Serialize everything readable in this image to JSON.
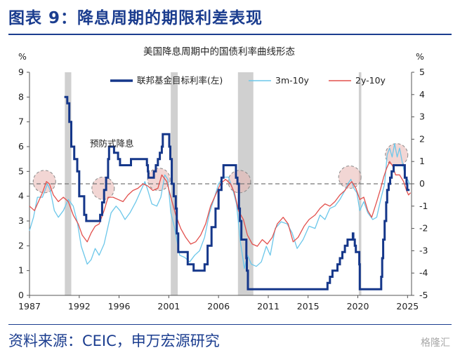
{
  "header": {
    "title": "图表 9：降息周期的期限利差表现"
  },
  "footer": {
    "source": "资料来源：CEIC，申万宏源研究",
    "watermark": "格隆汇"
  },
  "chart_data": {
    "type": "line",
    "title": "美国降息周期中的国债利率曲线形态",
    "y_left_unit": "%",
    "y_right_unit": "%",
    "y_left": {
      "min": 0,
      "max": 9,
      "ticks": [
        0,
        1,
        2,
        3,
        4,
        5,
        6,
        7,
        8,
        9
      ]
    },
    "y_right": {
      "min": -5,
      "max": 5,
      "ticks": [
        -5,
        -4,
        -3,
        -2,
        -1,
        0,
        1,
        2,
        3,
        4,
        5
      ]
    },
    "x": {
      "min": 1987,
      "max": 2025.4,
      "ticks": [
        "1987",
        "1992",
        "1996",
        "2001",
        "2006",
        "2011",
        "2015",
        "2020",
        "2025"
      ]
    },
    "recessions": [
      [
        1990.55,
        1991.2
      ],
      [
        2001.2,
        2001.9
      ],
      [
        2007.95,
        2009.5
      ],
      [
        2020.1,
        2020.35
      ]
    ],
    "annotation": "预防式降息",
    "legend": {
      "position": "top",
      "entries": [
        "联邦基金目标利率(左)",
        "3m-10y",
        "2y-10y"
      ]
    },
    "colors": {
      "fed": "#15378a",
      "m3y10": "#6cc7ea",
      "y2y10": "#e2504d",
      "recession": "#d0d0d0",
      "circle": "#e7b4b0"
    },
    "series": [
      {
        "name": "联邦基金目标利率(左)",
        "axis": "left",
        "points": [
          [
            1990.5,
            8.0
          ],
          [
            1990.8,
            7.75
          ],
          [
            1991.0,
            7.0
          ],
          [
            1991.2,
            6.0
          ],
          [
            1991.5,
            5.5
          ],
          [
            1991.8,
            5.0
          ],
          [
            1992.0,
            4.0
          ],
          [
            1992.5,
            3.25
          ],
          [
            1992.7,
            3.0
          ],
          [
            1994.0,
            3.0
          ],
          [
            1994.1,
            3.25
          ],
          [
            1994.3,
            3.75
          ],
          [
            1994.5,
            4.25
          ],
          [
            1994.7,
            4.75
          ],
          [
            1994.9,
            5.5
          ],
          [
            1995.0,
            6.0
          ],
          [
            1995.5,
            5.75
          ],
          [
            1995.9,
            5.5
          ],
          [
            1996.1,
            5.25
          ],
          [
            1997.2,
            5.5
          ],
          [
            1998.7,
            5.5
          ],
          [
            1998.8,
            5.25
          ],
          [
            1998.9,
            5.0
          ],
          [
            1998.95,
            4.75
          ],
          [
            1999.5,
            5.0
          ],
          [
            1999.7,
            5.25
          ],
          [
            1999.9,
            5.5
          ],
          [
            2000.1,
            5.75
          ],
          [
            2000.3,
            6.0
          ],
          [
            2000.4,
            6.5
          ],
          [
            2000.95,
            6.5
          ],
          [
            2001.05,
            6.0
          ],
          [
            2001.15,
            5.5
          ],
          [
            2001.3,
            4.5
          ],
          [
            2001.5,
            4.0
          ],
          [
            2001.7,
            3.5
          ],
          [
            2001.8,
            2.5
          ],
          [
            2001.95,
            1.75
          ],
          [
            2002.9,
            1.25
          ],
          [
            2003.5,
            1.0
          ],
          [
            2004.45,
            1.0
          ],
          [
            2004.6,
            1.25
          ],
          [
            2004.9,
            2.0
          ],
          [
            2005.3,
            2.75
          ],
          [
            2005.7,
            3.5
          ],
          [
            2006.0,
            4.25
          ],
          [
            2006.3,
            4.75
          ],
          [
            2006.5,
            5.25
          ],
          [
            2007.7,
            5.25
          ],
          [
            2007.75,
            4.75
          ],
          [
            2007.9,
            4.5
          ],
          [
            2008.05,
            3.5
          ],
          [
            2008.15,
            3.0
          ],
          [
            2008.3,
            2.25
          ],
          [
            2008.8,
            1.5
          ],
          [
            2008.85,
            1.0
          ],
          [
            2008.95,
            0.25
          ],
          [
            2015.95,
            0.25
          ],
          [
            2016.95,
            0.5
          ],
          [
            2017.2,
            0.75
          ],
          [
            2017.45,
            1.0
          ],
          [
            2017.95,
            1.25
          ],
          [
            2018.2,
            1.5
          ],
          [
            2018.45,
            1.75
          ],
          [
            2018.7,
            2.0
          ],
          [
            2018.97,
            2.25
          ],
          [
            2019.5,
            2.5
          ],
          [
            2019.55,
            2.25
          ],
          [
            2019.7,
            2.0
          ],
          [
            2019.8,
            1.75
          ],
          [
            2020.15,
            1.25
          ],
          [
            2020.2,
            0.25
          ],
          [
            2022.2,
            0.25
          ],
          [
            2022.35,
            0.75
          ],
          [
            2022.45,
            1.5
          ],
          [
            2022.55,
            2.25
          ],
          [
            2022.7,
            3.0
          ],
          [
            2022.85,
            3.75
          ],
          [
            2022.95,
            4.25
          ],
          [
            2023.1,
            4.5
          ],
          [
            2023.25,
            4.75
          ],
          [
            2023.4,
            5.0
          ],
          [
            2023.6,
            5.25
          ],
          [
            2024.7,
            5.25
          ],
          [
            2024.72,
            4.75
          ],
          [
            2024.9,
            4.5
          ],
          [
            2024.97,
            4.25
          ],
          [
            2025.2,
            4.25
          ]
        ]
      },
      {
        "name": "3m-10y",
        "axis": "right",
        "points": [
          [
            1987.0,
            -2.1
          ],
          [
            1987.4,
            -1.5
          ],
          [
            1987.8,
            -0.6
          ],
          [
            1988.3,
            -0.6
          ],
          [
            1988.8,
            0.0
          ],
          [
            1989.1,
            -0.3
          ],
          [
            1989.5,
            -1.2
          ],
          [
            1989.9,
            -1.5
          ],
          [
            1990.4,
            -1.2
          ],
          [
            1990.9,
            -0.7
          ],
          [
            1991.4,
            -1.0
          ],
          [
            1991.8,
            -1.7
          ],
          [
            1992.2,
            -2.8
          ],
          [
            1992.8,
            -3.6
          ],
          [
            1993.2,
            -3.4
          ],
          [
            1993.6,
            -2.9
          ],
          [
            1994.0,
            -3.2
          ],
          [
            1994.5,
            -2.7
          ],
          [
            1994.8,
            -2.1
          ],
          [
            1995.2,
            -1.3
          ],
          [
            1995.7,
            -1.0
          ],
          [
            1996.1,
            -1.2
          ],
          [
            1996.6,
            -1.6
          ],
          [
            1997.1,
            -1.3
          ],
          [
            1997.7,
            -0.8
          ],
          [
            1998.1,
            -0.4
          ],
          [
            1998.6,
            0.1
          ],
          [
            1998.9,
            -0.3
          ],
          [
            1999.3,
            -0.9
          ],
          [
            1999.8,
            -1.0
          ],
          [
            2000.2,
            -0.6
          ],
          [
            2000.6,
            0.4
          ],
          [
            2000.9,
            0.2
          ],
          [
            2001.2,
            -1.3
          ],
          [
            2001.6,
            -2.0
          ],
          [
            2002.1,
            -3.2
          ],
          [
            2002.6,
            -3.3
          ],
          [
            2003.1,
            -3.5
          ],
          [
            2003.6,
            -3.2
          ],
          [
            2004.1,
            -3.0
          ],
          [
            2004.6,
            -2.4
          ],
          [
            2005.1,
            -1.3
          ],
          [
            2005.6,
            -0.6
          ],
          [
            2006.0,
            0.0
          ],
          [
            2006.5,
            0.3
          ],
          [
            2007.0,
            0.3
          ],
          [
            2007.4,
            -0.2
          ],
          [
            2007.8,
            -0.9
          ],
          [
            2008.2,
            -2.6
          ],
          [
            2008.6,
            -3.8
          ],
          [
            2008.9,
            -3.2
          ],
          [
            2009.3,
            -3.6
          ],
          [
            2009.8,
            -3.7
          ],
          [
            2010.3,
            -3.5
          ],
          [
            2010.8,
            -2.8
          ],
          [
            2011.2,
            -3.2
          ],
          [
            2011.7,
            -2.0
          ],
          [
            2012.3,
            -1.7
          ],
          [
            2012.9,
            -1.8
          ],
          [
            2013.4,
            -2.2
          ],
          [
            2013.9,
            -2.9
          ],
          [
            2014.5,
            -2.5
          ],
          [
            2015.1,
            -1.9
          ],
          [
            2015.7,
            -2.0
          ],
          [
            2016.2,
            -1.4
          ],
          [
            2016.7,
            -1.6
          ],
          [
            2017.2,
            -1.1
          ],
          [
            2017.7,
            -1.0
          ],
          [
            2018.2,
            -0.7
          ],
          [
            2018.7,
            -0.3
          ],
          [
            2019.0,
            0.0
          ],
          [
            2019.3,
            0.2
          ],
          [
            2019.6,
            -0.2
          ],
          [
            2019.9,
            -0.4
          ],
          [
            2020.2,
            -1.2
          ],
          [
            2020.6,
            -0.8
          ],
          [
            2021.0,
            -1.3
          ],
          [
            2021.5,
            -1.6
          ],
          [
            2021.9,
            -1.5
          ],
          [
            2022.3,
            -0.7
          ],
          [
            2022.7,
            0.0
          ],
          [
            2022.95,
            1.3
          ],
          [
            2023.2,
            1.6
          ],
          [
            2023.45,
            1.2
          ],
          [
            2023.7,
            1.8
          ],
          [
            2023.95,
            1.2
          ],
          [
            2024.2,
            1.6
          ],
          [
            2024.5,
            0.9
          ],
          [
            2024.8,
            0.3
          ],
          [
            2025.0,
            0.2
          ],
          [
            2025.2,
            0.0
          ]
        ]
      },
      {
        "name": "2y-10y",
        "axis": "right",
        "points": [
          [
            1987.0,
            -1.0
          ],
          [
            1987.5,
            -1.2
          ],
          [
            1987.9,
            -0.8
          ],
          [
            1988.3,
            -0.4
          ],
          [
            1988.7,
            0.1
          ],
          [
            1989.0,
            0.0
          ],
          [
            1989.4,
            -0.5
          ],
          [
            1989.9,
            -0.8
          ],
          [
            1990.4,
            -0.6
          ],
          [
            1990.9,
            -0.8
          ],
          [
            1991.4,
            -1.4
          ],
          [
            1991.9,
            -1.8
          ],
          [
            1992.3,
            -2.3
          ],
          [
            1992.8,
            -2.6
          ],
          [
            1993.2,
            -2.2
          ],
          [
            1993.6,
            -1.9
          ],
          [
            1994.0,
            -1.8
          ],
          [
            1994.5,
            -1.2
          ],
          [
            1994.9,
            -0.6
          ],
          [
            1995.4,
            -0.6
          ],
          [
            1995.9,
            -0.7
          ],
          [
            1996.4,
            -0.8
          ],
          [
            1996.9,
            -0.5
          ],
          [
            1997.4,
            -0.3
          ],
          [
            1997.9,
            -0.2
          ],
          [
            1998.4,
            0.0
          ],
          [
            1998.9,
            -0.1
          ],
          [
            1999.4,
            -0.3
          ],
          [
            1999.9,
            -0.2
          ],
          [
            2000.3,
            0.4
          ],
          [
            2000.8,
            0.1
          ],
          [
            2001.2,
            -0.6
          ],
          [
            2001.7,
            -1.4
          ],
          [
            2002.2,
            -2.0
          ],
          [
            2002.7,
            -2.4
          ],
          [
            2003.2,
            -2.7
          ],
          [
            2003.7,
            -2.6
          ],
          [
            2004.2,
            -2.3
          ],
          [
            2004.7,
            -1.8
          ],
          [
            2005.2,
            -1.0
          ],
          [
            2005.7,
            -0.5
          ],
          [
            2006.2,
            0.0
          ],
          [
            2006.7,
            0.2
          ],
          [
            2007.2,
            0.0
          ],
          [
            2007.6,
            -0.4
          ],
          [
            2008.0,
            -1.2
          ],
          [
            2008.5,
            -1.6
          ],
          [
            2008.9,
            -2.3
          ],
          [
            2009.4,
            -2.7
          ],
          [
            2009.9,
            -2.8
          ],
          [
            2010.4,
            -2.5
          ],
          [
            2010.9,
            -2.7
          ],
          [
            2011.4,
            -2.4
          ],
          [
            2011.9,
            -1.8
          ],
          [
            2012.5,
            -1.5
          ],
          [
            2013.0,
            -1.8
          ],
          [
            2013.5,
            -2.6
          ],
          [
            2014.0,
            -2.4
          ],
          [
            2014.6,
            -1.9
          ],
          [
            2015.1,
            -1.6
          ],
          [
            2015.7,
            -1.4
          ],
          [
            2016.2,
            -1.1
          ],
          [
            2016.7,
            -0.9
          ],
          [
            2017.2,
            -1.0
          ],
          [
            2017.7,
            -0.8
          ],
          [
            2018.2,
            -0.5
          ],
          [
            2018.7,
            -0.3
          ],
          [
            2019.0,
            -0.1
          ],
          [
            2019.4,
            0.1
          ],
          [
            2019.8,
            -0.2
          ],
          [
            2020.2,
            -0.7
          ],
          [
            2020.6,
            -0.6
          ],
          [
            2021.0,
            -1.2
          ],
          [
            2021.4,
            -1.5
          ],
          [
            2021.9,
            -0.8
          ],
          [
            2022.3,
            -0.2
          ],
          [
            2022.6,
            0.3
          ],
          [
            2022.9,
            0.7
          ],
          [
            2023.2,
            1.0
          ],
          [
            2023.5,
            0.8
          ],
          [
            2023.8,
            0.4
          ],
          [
            2024.2,
            0.4
          ],
          [
            2024.6,
            0.1
          ],
          [
            2024.9,
            -0.3
          ],
          [
            2025.1,
            -0.5
          ],
          [
            2025.3,
            -0.4
          ]
        ]
      }
    ],
    "circles": [
      [
        1988.5,
        0.1
      ],
      [
        1994.4,
        -0.2
      ],
      [
        2000.0,
        0.2
      ],
      [
        2008.1,
        0.1
      ],
      [
        2019.2,
        0.3
      ],
      [
        2023.9,
        1.3
      ]
    ]
  }
}
